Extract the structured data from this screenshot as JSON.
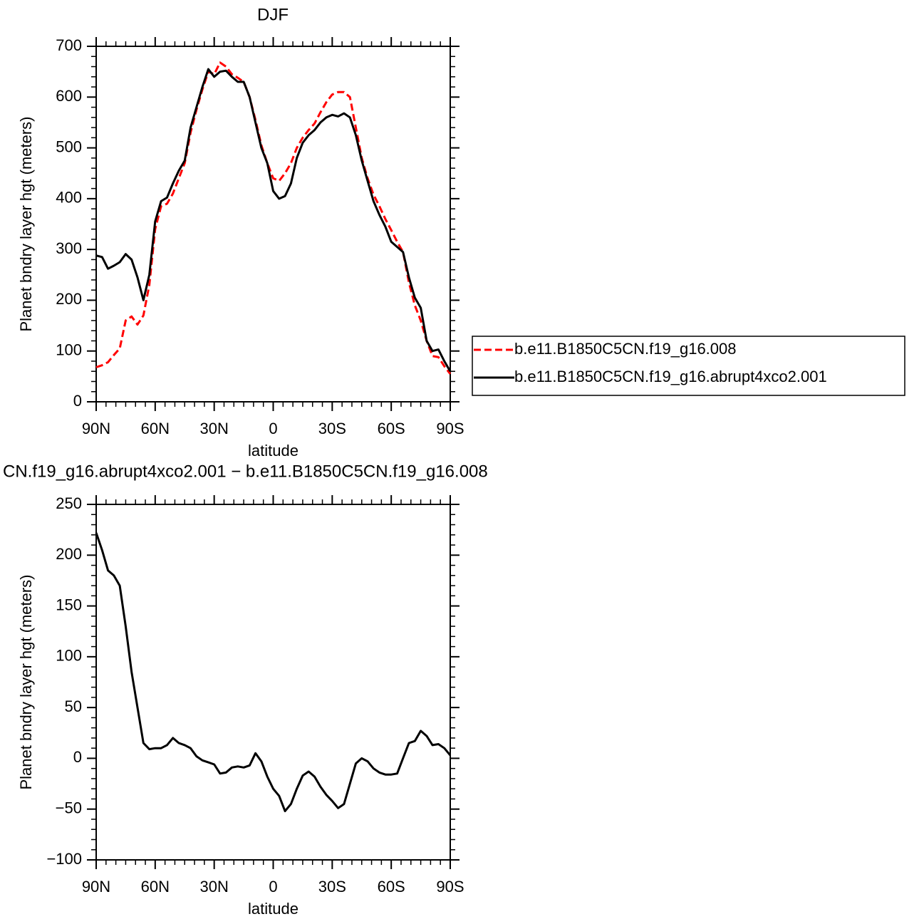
{
  "chart_data": [
    {
      "type": "line",
      "title": "DJF",
      "x_label": "latitude",
      "y_label": "Planet bndry layer hgt (meters)",
      "x": [
        90,
        87,
        84,
        81,
        78,
        75,
        72,
        69,
        66,
        63,
        60,
        57,
        54,
        51,
        48,
        45,
        42,
        39,
        36,
        33,
        30,
        27,
        24,
        21,
        18,
        15,
        12,
        9,
        6,
        3,
        0,
        -3,
        -6,
        -9,
        -12,
        -15,
        -18,
        -21,
        -24,
        -27,
        -30,
        -33,
        -36,
        -39,
        -42,
        -45,
        -48,
        -51,
        -54,
        -57,
        -60,
        -63,
        -66,
        -69,
        -72,
        -75,
        -78,
        -81,
        -84,
        -87,
        -90
      ],
      "xlim": [
        90,
        -90
      ],
      "xticks": [
        {
          "value": 90,
          "label": "90N"
        },
        {
          "value": 60,
          "label": "60N"
        },
        {
          "value": 30,
          "label": "30N"
        },
        0,
        {
          "value": -30,
          "label": "30S"
        },
        {
          "value": -60,
          "label": "60S"
        },
        {
          "value": -90,
          "label": "90S"
        }
      ],
      "ylim": [
        0,
        700
      ],
      "yticks": [
        0,
        100,
        200,
        300,
        400,
        500,
        600,
        700
      ],
      "legend": "right",
      "series": [
        {
          "name": "b.e11.B1850C5CN.f19_g16.008",
          "color": "#ff0000",
          "dashed": true,
          "values": [
            68,
            72,
            78,
            92,
            105,
            160,
            168,
            152,
            170,
            230,
            340,
            385,
            390,
            410,
            440,
            470,
            530,
            575,
            615,
            650,
            645,
            668,
            660,
            645,
            638,
            630,
            600,
            555,
            505,
            470,
            440,
            435,
            450,
            470,
            500,
            520,
            535,
            548,
            570,
            590,
            605,
            610,
            610,
            600,
            540,
            480,
            440,
            408,
            385,
            360,
            338,
            315,
            295,
            235,
            190,
            160,
            120,
            90,
            88,
            70,
            55
          ]
        },
        {
          "name": "b.e11.B1850C5CN.f19_g16.abrupt4xco2.001",
          "color": "#000000",
          "dashed": false,
          "values": [
            288,
            285,
            262,
            268,
            275,
            291,
            280,
            245,
            200,
            250,
            355,
            395,
            402,
            430,
            455,
            475,
            540,
            580,
            620,
            655,
            640,
            650,
            652,
            640,
            630,
            630,
            600,
            550,
            500,
            470,
            415,
            400,
            405,
            430,
            480,
            510,
            525,
            535,
            550,
            560,
            565,
            562,
            568,
            560,
            525,
            475,
            435,
            395,
            368,
            345,
            315,
            305,
            295,
            245,
            205,
            185,
            120,
            100,
            103,
            80,
            60
          ]
        }
      ]
    },
    {
      "type": "line",
      "title": "CN.f19_g16.abrupt4xco2.001 − b.e11.B1850C5CN.f19_g16.008",
      "x_label": "latitude",
      "y_label": "Planet bndry layer hgt (meters)",
      "x": [
        90,
        87,
        84,
        81,
        78,
        75,
        72,
        69,
        66,
        63,
        60,
        57,
        54,
        51,
        48,
        45,
        42,
        39,
        36,
        33,
        30,
        27,
        24,
        21,
        18,
        15,
        12,
        9,
        6,
        3,
        0,
        -3,
        -6,
        -9,
        -12,
        -15,
        -18,
        -21,
        -24,
        -27,
        -30,
        -33,
        -36,
        -39,
        -42,
        -45,
        -48,
        -51,
        -54,
        -57,
        -60,
        -63,
        -66,
        -69,
        -72,
        -75,
        -78,
        -81,
        -84,
        -87,
        -90
      ],
      "xlim": [
        90,
        -90
      ],
      "xticks": [
        {
          "value": 90,
          "label": "90N"
        },
        {
          "value": 60,
          "label": "60N"
        },
        {
          "value": 30,
          "label": "30N"
        },
        0,
        {
          "value": -30,
          "label": "30S"
        },
        {
          "value": -60,
          "label": "60S"
        },
        {
          "value": -90,
          "label": "90S"
        }
      ],
      "ylim": [
        -100,
        250
      ],
      "yticks": [
        {
          "value": -100,
          "label": "−100"
        },
        {
          "value": -50,
          "label": "−50"
        },
        0,
        50,
        100,
        150,
        200,
        250
      ],
      "color": "#000000",
      "values": [
        222,
        205,
        185,
        180,
        170,
        130,
        85,
        50,
        15,
        9,
        10,
        10,
        13,
        20,
        15,
        13,
        10,
        2,
        -2,
        -4,
        -6,
        -15,
        -14,
        -9,
        -8,
        -9,
        -7,
        5,
        -3,
        -18,
        -30,
        -37,
        -52,
        -45,
        -30,
        -17,
        -13,
        -18,
        -28,
        -36,
        -42,
        -49,
        -45,
        -25,
        -5,
        0,
        -3,
        -10,
        -14,
        -16,
        -16,
        -15,
        0,
        15,
        17,
        27,
        22,
        13,
        14,
        10,
        3
      ]
    }
  ]
}
